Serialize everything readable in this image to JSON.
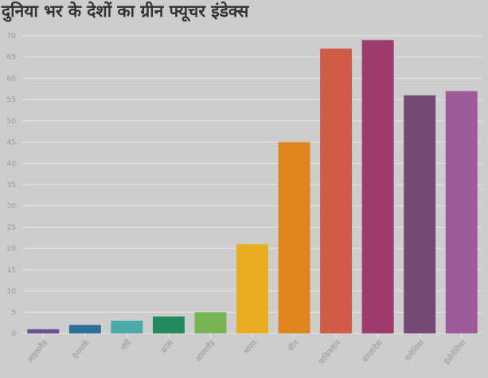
{
  "chart_data": {
    "type": "bar",
    "title": "दुनिया भर के देशों का ग्रीन फ्यूचर इंडेक्स",
    "categories": [
      "आइसलैंड",
      "डेनमार्क",
      "नॉर्वे",
      "फ्रांस",
      "आयरलैंड",
      "भारत",
      "चीन",
      "पाकिस्तान",
      "बांग्लादेश",
      "मलेशिया",
      "इंडोनेशिया"
    ],
    "values": [
      1,
      2,
      3,
      4,
      5,
      21,
      45,
      67,
      69,
      56,
      57
    ],
    "colors": [
      "#6a4f96",
      "#2d6f98",
      "#4aa9a9",
      "#238a5f",
      "#79b454",
      "#e8ad21",
      "#e0841e",
      "#d05b48",
      "#9d3b6d",
      "#744a74",
      "#9c5b98"
    ],
    "ylim": [
      0,
      70
    ],
    "yticks": [
      0,
      5,
      10,
      15,
      20,
      25,
      30,
      35,
      40,
      45,
      50,
      55,
      60,
      65,
      70
    ],
    "grid": true,
    "xlabel": "",
    "ylabel": ""
  }
}
